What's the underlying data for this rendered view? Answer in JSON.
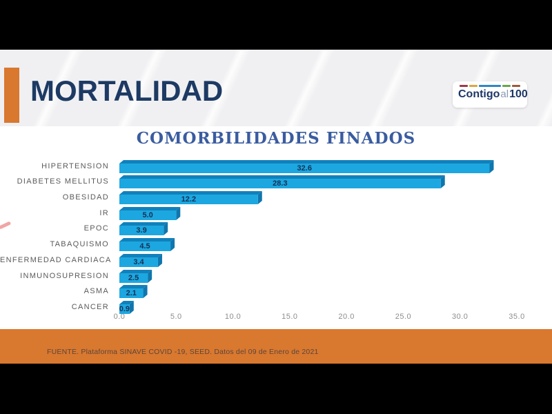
{
  "slide": {
    "title": "MORTALIDAD",
    "title_color": "#1c3a63",
    "accent_color": "#d9782f"
  },
  "logo": {
    "text_main": "Contigo",
    "text_mid": "al",
    "text_num": "100",
    "stripes": [
      {
        "name": "maroon-dash",
        "color": "#9c3b47",
        "width": 12
      },
      {
        "name": "yellow-dash",
        "color": "#d8a93d",
        "width": 13
      },
      {
        "name": "blue-dash",
        "color": "#2f86c4",
        "width": 32
      },
      {
        "name": "green-dash",
        "color": "#6aa64d",
        "width": 13
      },
      {
        "name": "brown-dash",
        "color": "#9e5a3a",
        "width": 12
      }
    ]
  },
  "chart_data": {
    "type": "bar",
    "orientation": "horizontal",
    "title": "COMORBILIDADES FINADOS",
    "title_color": "#3a5ca0",
    "categories": [
      "HIPERTENSION",
      "DIABETES MELLITUS",
      "OBESIDAD",
      "IR",
      "EPOC",
      "TABAQUISMO",
      "ENFERMEDAD CARDIACA",
      "INMUNOSUPRESION",
      "ASMA",
      "CANCER"
    ],
    "values": [
      32.6,
      28.3,
      12.2,
      5.0,
      3.9,
      4.5,
      3.4,
      2.5,
      2.1,
      0.9
    ],
    "x_ticks": [
      "0.0",
      "5.0",
      "10.0",
      "15.0",
      "20.0",
      "25.0",
      "30.0",
      "35.0"
    ],
    "xlim": [
      0,
      35
    ],
    "grid": false,
    "legend": false,
    "bar_color": "#1ca7e0",
    "bar_top_color": "#1081bc",
    "bar_side_color": "#0f76ad",
    "value_label_color": "#153055"
  },
  "footer": {
    "source_text": "FUENTE. Plataforma SINAVE COVID -19, SEED. Datos del 09 de Enero de 2021",
    "bar_color": "#d9782f"
  }
}
